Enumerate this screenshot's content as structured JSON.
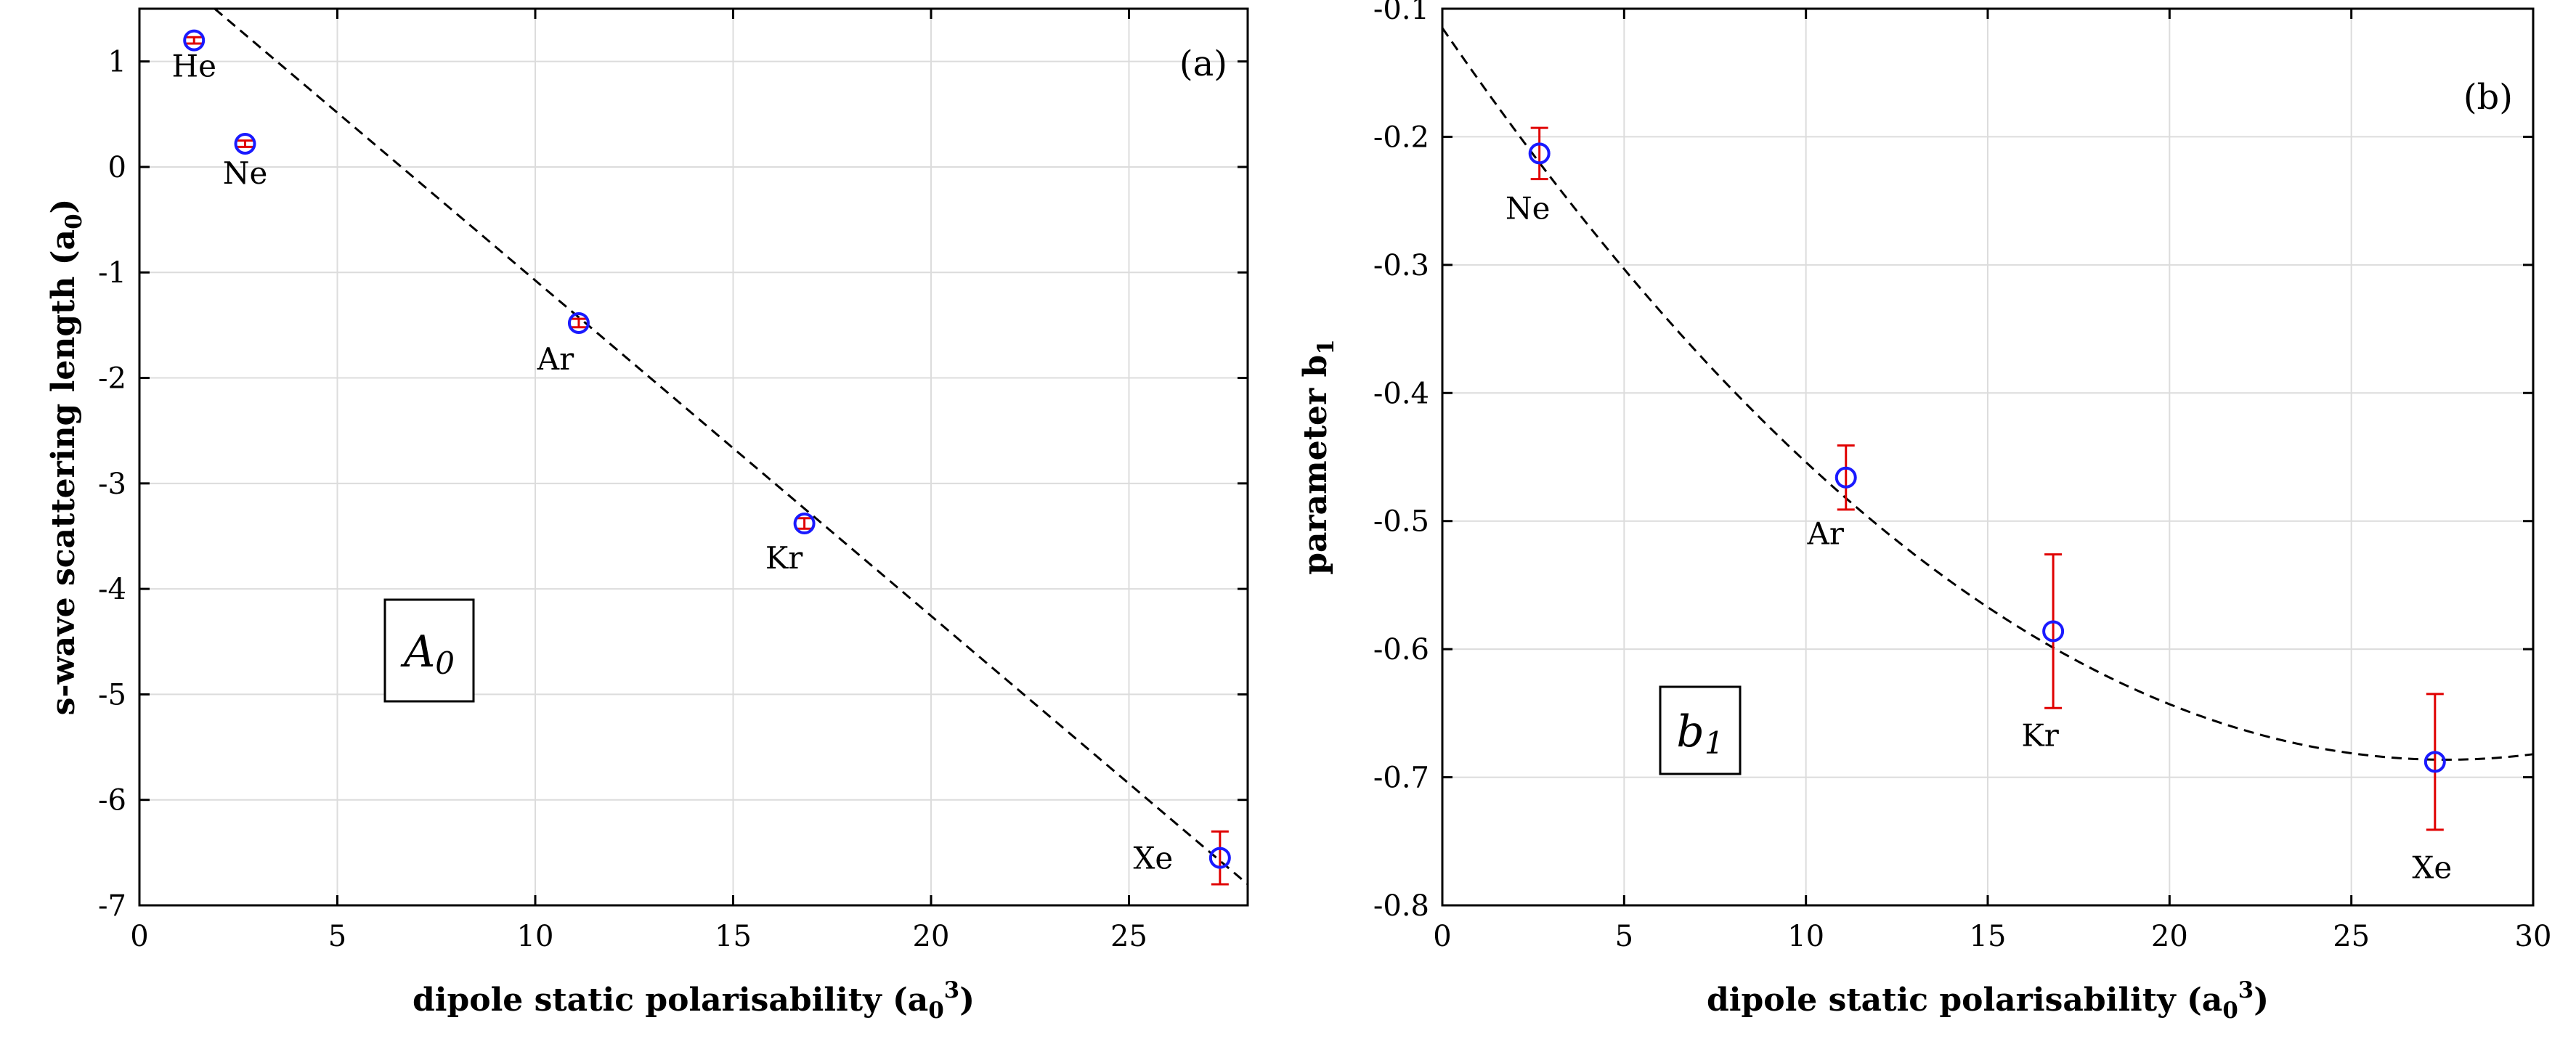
{
  "chart_data": [
    {
      "type": "scatter",
      "panel_tag": "(a)",
      "xlabel": "dipole static polarisability (a₀³)",
      "ylabel": "s-wave scattering length (a₀)",
      "xlim": [
        0,
        28
      ],
      "ylim": [
        -7,
        1.5
      ],
      "xticks": [
        0,
        5,
        10,
        15,
        20,
        25
      ],
      "yticks": [
        1,
        0,
        -1,
        -2,
        -3,
        -4,
        -5,
        -6,
        -7
      ],
      "xtick_labels": [
        "0",
        "5",
        "10",
        "15",
        "20",
        "25"
      ],
      "ytick_labels": [
        "1",
        "0",
        "-1",
        "-2",
        "-3",
        "-4",
        "-5",
        "-6",
        "-7"
      ],
      "grid": true,
      "boxed_label": "A₀",
      "points": [
        {
          "label": "He",
          "x": 1.38,
          "y": 1.2,
          "err": 0.03
        },
        {
          "label": "Ne",
          "x": 2.67,
          "y": 0.22,
          "err": 0.03
        },
        {
          "label": "Ar",
          "x": 11.1,
          "y": -1.48,
          "err": 0.04
        },
        {
          "label": "Kr",
          "x": 16.8,
          "y": -3.38,
          "err": 0.05
        },
        {
          "label": "Xe",
          "x": 27.3,
          "y": -6.55,
          "err": 0.25
        }
      ],
      "fit": {
        "type": "linear",
        "x": [
          1.9,
          28.0
        ],
        "y": [
          1.5,
          -6.8
        ],
        "style": "dashed"
      }
    },
    {
      "type": "scatter",
      "panel_tag": "(b)",
      "xlabel": "dipole static polarisability (a₀³)",
      "ylabel": "parameter b₁",
      "xlim": [
        0,
        30
      ],
      "ylim": [
        -0.8,
        -0.1
      ],
      "xticks": [
        0,
        5,
        10,
        15,
        20,
        25,
        30
      ],
      "yticks": [
        -0.1,
        -0.2,
        -0.3,
        -0.4,
        -0.5,
        -0.6,
        -0.7,
        -0.8
      ],
      "xtick_labels": [
        "0",
        "5",
        "10",
        "15",
        "20",
        "25",
        "30"
      ],
      "ytick_labels": [
        "-0.1",
        "-0.2",
        "-0.3",
        "-0.4",
        "-0.5",
        "-0.6",
        "-0.7",
        "-0.8"
      ],
      "grid": true,
      "boxed_label": "b₁",
      "points": [
        {
          "label": "Ne",
          "x": 2.67,
          "y": -0.213,
          "err": 0.02
        },
        {
          "label": "Ar",
          "x": 11.1,
          "y": -0.466,
          "err": 0.025
        },
        {
          "label": "Kr",
          "x": 16.8,
          "y": -0.586,
          "err": 0.06
        },
        {
          "label": "Xe",
          "x": 27.3,
          "y": -0.688,
          "err": 0.053
        }
      ],
      "fit": {
        "type": "quadratic",
        "coeffs": [
          -0.115,
          -0.0414,
          0.00075
        ],
        "x_range": [
          0,
          30
        ],
        "style": "dashed"
      }
    }
  ]
}
